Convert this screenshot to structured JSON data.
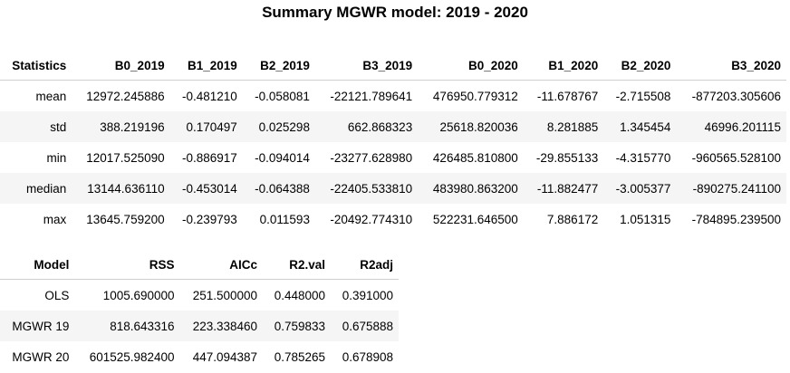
{
  "title": "Summary MGWR model: 2019 - 2020",
  "stats_table": {
    "headers": [
      "Statistics",
      "B0_2019",
      "B1_2019",
      "B2_2019",
      "B3_2019",
      "B0_2020",
      "B1_2020",
      "B2_2020",
      "B3_2020"
    ],
    "rows": [
      [
        "mean",
        "12972.245886",
        "-0.481210",
        "-0.058081",
        "-22121.789641",
        "476950.779312",
        "-11.678767",
        "-2.715508",
        "-877203.305606"
      ],
      [
        "std",
        "388.219196",
        "0.170497",
        "0.025298",
        "662.868323",
        "25618.820036",
        "8.281885",
        "1.345454",
        "46996.201115"
      ],
      [
        "min",
        "12017.525090",
        "-0.886917",
        "-0.094014",
        "-23277.628980",
        "426485.810800",
        "-29.855133",
        "-4.315770",
        "-960565.528100"
      ],
      [
        "median",
        "13144.636110",
        "-0.453014",
        "-0.064388",
        "-22405.533810",
        "483980.863200",
        "-11.882477",
        "-3.005377",
        "-890275.241100"
      ],
      [
        "max",
        "13645.759200",
        "-0.239793",
        "0.011593",
        "-20492.774310",
        "522231.646500",
        "7.886172",
        "1.051315",
        "-784895.239500"
      ]
    ]
  },
  "model_table": {
    "headers": [
      "Model",
      "RSS",
      "AICc",
      "R2.val",
      "R2adj"
    ],
    "rows": [
      [
        "OLS",
        "1005.690000",
        "251.500000",
        "0.448000",
        "0.391000"
      ],
      [
        "MGWR 19",
        "818.643316",
        "223.338460",
        "0.759833",
        "0.675888"
      ],
      [
        "MGWR 20",
        "601525.982400",
        "447.094387",
        "0.785265",
        "0.678908"
      ]
    ]
  }
}
